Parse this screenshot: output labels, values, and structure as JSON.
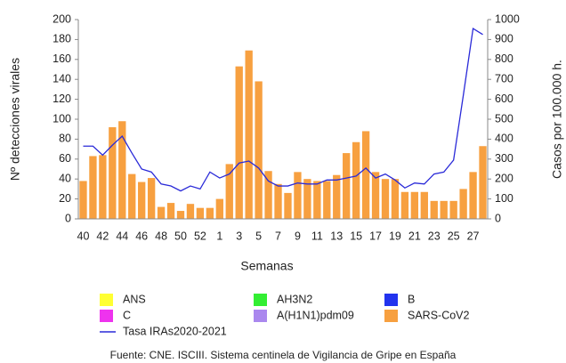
{
  "chart_data": {
    "type": "bar",
    "xlabel": "Semanas",
    "ylabel": "Nº detecciones virales",
    "y2label": "Casos por 100.000 h.",
    "source": "Fuente: CNE. ISCIII. Sistema centinela de Vigilancia de Gripe en España",
    "categories": [
      "40",
      null,
      "42",
      null,
      "44",
      null,
      "46",
      null,
      "48",
      null,
      "50",
      null,
      "52",
      null,
      "1",
      null,
      "3",
      null,
      "5",
      null,
      "7",
      null,
      "9",
      null,
      "11",
      null,
      "13",
      null,
      "15",
      null,
      "17",
      null,
      "19",
      null,
      "21",
      null,
      "23",
      null,
      "25",
      null,
      "27",
      null
    ],
    "ylim": [
      0,
      200
    ],
    "yticks": [
      0,
      20,
      40,
      60,
      80,
      100,
      120,
      140,
      160,
      180,
      200
    ],
    "y2lim": [
      0,
      1000
    ],
    "y2ticks": [
      0,
      100,
      200,
      300,
      400,
      500,
      600,
      700,
      800,
      900,
      1000
    ],
    "stacked": true,
    "series": [
      {
        "name": "ANS",
        "color": "#ffff33",
        "type": "bar",
        "values": [
          0,
          0,
          0,
          0,
          0,
          0,
          0,
          0,
          0,
          0,
          0,
          0,
          0,
          0,
          0,
          0,
          0,
          0,
          0,
          0,
          0,
          0,
          0,
          0,
          0,
          0,
          0,
          0,
          0,
          0,
          0,
          0,
          0,
          0,
          0,
          0,
          0,
          0,
          0,
          0,
          0,
          0
        ]
      },
      {
        "name": "AH3N2",
        "color": "#33ee33",
        "type": "bar",
        "values": [
          0,
          0,
          0,
          0,
          0,
          0,
          0,
          0,
          0,
          0,
          0,
          0,
          0,
          0,
          0,
          0,
          0,
          0,
          0,
          0,
          0,
          0,
          0,
          0,
          0,
          0,
          0,
          0,
          0,
          0,
          0,
          0,
          0,
          0,
          0,
          0,
          0,
          0,
          0,
          0,
          0,
          0
        ]
      },
      {
        "name": "B",
        "color": "#2233ee",
        "type": "bar",
        "values": [
          0,
          0,
          0,
          0,
          0,
          0,
          0,
          0,
          0,
          0,
          0,
          0,
          0,
          0,
          0,
          0,
          0,
          0,
          0,
          0,
          0,
          0,
          0,
          0,
          0,
          0,
          0,
          0,
          0,
          0,
          0,
          0,
          0,
          0,
          0,
          0,
          0,
          0,
          0,
          0,
          0,
          0
        ]
      },
      {
        "name": "C",
        "color": "#ee33ee",
        "type": "bar",
        "values": [
          0,
          0,
          0,
          0,
          0,
          0,
          0,
          0,
          0,
          0,
          0,
          0,
          0,
          0,
          0,
          0,
          0,
          0,
          0,
          0,
          0,
          0,
          0,
          0,
          0,
          0,
          0,
          0,
          0,
          0,
          0,
          0,
          0,
          0,
          0,
          0,
          0,
          0,
          0,
          0,
          0,
          0
        ]
      },
      {
        "name": "A(H1N1)pdm09",
        "color": "#aa88ee",
        "type": "bar",
        "values": [
          0,
          0,
          0,
          0,
          0,
          0,
          0,
          0,
          0,
          0,
          0,
          0,
          0,
          0,
          0,
          0,
          0,
          0,
          0,
          0,
          0,
          0,
          0,
          0,
          0,
          0,
          0,
          0,
          0,
          0,
          0,
          0,
          0,
          0,
          0,
          0,
          0,
          0,
          0,
          0,
          0,
          0
        ]
      },
      {
        "name": "SARS-CoV2",
        "color": "#f7a040",
        "type": "bar",
        "values": [
          38,
          63,
          64,
          92,
          98,
          45,
          37,
          41,
          12,
          16,
          8,
          15,
          11,
          11,
          20,
          55,
          153,
          169,
          138,
          48,
          35,
          26,
          47,
          40,
          38,
          38,
          44,
          66,
          77,
          88,
          47,
          40,
          40,
          27,
          27,
          27,
          18,
          18,
          18,
          30,
          47,
          73
        ]
      },
      {
        "name": "Tasa IRAs2020-2021",
        "color": "#2a2ad8",
        "type": "line",
        "axis": "y2",
        "values": [
          365,
          365,
          320,
          370,
          415,
          330,
          250,
          235,
          175,
          165,
          140,
          165,
          150,
          235,
          205,
          225,
          280,
          290,
          255,
          190,
          165,
          165,
          180,
          175,
          175,
          195,
          195,
          205,
          215,
          255,
          205,
          225,
          195,
          155,
          180,
          175,
          225,
          235,
          295,
          620,
          955,
          925
        ]
      }
    ]
  }
}
